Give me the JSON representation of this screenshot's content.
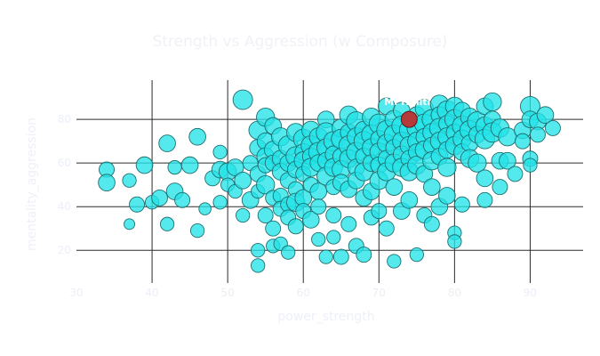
{
  "chart_data": {
    "type": "scatter",
    "title": "Strength vs Aggression (w Composure)",
    "xlabel": "power_strength",
    "ylabel": "mentality_aggression",
    "xlim": [
      30,
      97
    ],
    "ylim": [
      5,
      98
    ],
    "x_ticks": [
      30,
      40,
      50,
      60,
      70,
      80,
      90
    ],
    "y_ticks": [
      20,
      40,
      60,
      80
    ],
    "grid": true,
    "legend": "none",
    "colors": {
      "points": "#22e3e8",
      "highlight": "#b53a3a"
    },
    "highlight": {
      "label": "M. Haliti",
      "x": 74,
      "y": 80
    },
    "series": [
      {
        "points": [
          [
            34,
            57,
            72
          ],
          [
            34,
            51,
            74
          ],
          [
            37,
            52,
            70
          ],
          [
            37,
            32,
            66
          ],
          [
            38,
            41,
            72
          ],
          [
            39,
            59,
            74
          ],
          [
            40,
            42,
            70
          ],
          [
            41,
            44,
            73
          ],
          [
            42,
            69,
            74
          ],
          [
            42,
            32,
            70
          ],
          [
            43,
            58,
            70
          ],
          [
            43,
            47,
            74
          ],
          [
            44,
            43,
            72
          ],
          [
            45,
            59,
            74
          ],
          [
            46,
            72,
            74
          ],
          [
            46,
            29,
            70
          ],
          [
            47,
            39,
            68
          ],
          [
            48,
            53,
            72
          ],
          [
            49,
            57,
            74
          ],
          [
            49,
            65,
            70
          ],
          [
            49,
            42,
            70
          ],
          [
            50,
            56,
            75
          ],
          [
            50,
            50,
            70
          ],
          [
            51,
            58,
            74
          ],
          [
            51,
            47,
            70
          ],
          [
            52,
            36,
            70
          ],
          [
            52,
            52,
            74
          ],
          [
            52,
            89,
            78
          ],
          [
            53,
            43,
            74
          ],
          [
            53,
            60,
            72
          ],
          [
            54,
            75,
            76
          ],
          [
            54,
            67,
            74
          ],
          [
            54,
            55,
            73
          ],
          [
            54,
            47,
            70
          ],
          [
            54,
            13,
            70
          ],
          [
            54,
            20,
            70
          ],
          [
            55,
            81,
            76
          ],
          [
            55,
            70,
            74
          ],
          [
            55,
            63,
            75
          ],
          [
            55,
            59,
            72
          ],
          [
            55,
            50,
            76
          ],
          [
            55,
            36,
            72
          ],
          [
            56,
            77,
            74
          ],
          [
            56,
            66,
            75
          ],
          [
            56,
            60,
            73
          ],
          [
            56,
            44,
            72
          ],
          [
            56,
            30,
            72
          ],
          [
            56,
            22,
            70
          ],
          [
            57,
            72,
            76
          ],
          [
            57,
            62,
            74
          ],
          [
            57,
            56,
            74
          ],
          [
            57,
            45,
            72
          ],
          [
            57,
            39,
            72
          ],
          [
            57,
            23,
            70
          ],
          [
            58,
            68,
            78
          ],
          [
            58,
            60,
            74
          ],
          [
            58,
            52,
            73
          ],
          [
            58,
            41,
            72
          ],
          [
            58,
            35,
            72
          ],
          [
            58,
            19,
            70
          ],
          [
            59,
            74,
            76
          ],
          [
            59,
            63,
            78
          ],
          [
            59,
            57,
            74
          ],
          [
            59,
            48,
            72
          ],
          [
            59,
            42,
            76
          ],
          [
            59,
            31,
            72
          ],
          [
            60,
            71,
            78
          ],
          [
            60,
            65,
            74
          ],
          [
            60,
            61,
            76
          ],
          [
            60,
            55,
            72
          ],
          [
            60,
            44,
            74
          ],
          [
            60,
            38,
            72
          ],
          [
            61,
            75,
            76
          ],
          [
            61,
            68,
            78
          ],
          [
            61,
            63,
            74
          ],
          [
            61,
            58,
            76
          ],
          [
            61,
            50,
            72
          ],
          [
            61,
            34,
            74
          ],
          [
            62,
            72,
            76
          ],
          [
            62,
            65,
            78
          ],
          [
            62,
            60,
            74
          ],
          [
            62,
            47,
            74
          ],
          [
            62,
            40,
            72
          ],
          [
            62,
            25,
            70
          ],
          [
            63,
            80,
            74
          ],
          [
            63,
            74,
            78
          ],
          [
            63,
            67,
            76
          ],
          [
            63,
            61,
            74
          ],
          [
            63,
            54,
            76
          ],
          [
            63,
            17,
            70
          ],
          [
            64,
            70,
            78
          ],
          [
            64,
            64,
            74
          ],
          [
            64,
            58,
            76
          ],
          [
            64,
            49,
            72
          ],
          [
            64,
            36,
            72
          ],
          [
            64,
            26,
            70
          ],
          [
            65,
            76,
            76
          ],
          [
            65,
            71,
            78
          ],
          [
            65,
            63,
            74
          ],
          [
            65,
            57,
            76
          ],
          [
            65,
            51,
            74
          ],
          [
            65,
            17,
            72
          ],
          [
            66,
            82,
            76
          ],
          [
            66,
            74,
            74
          ],
          [
            66,
            68,
            78
          ],
          [
            66,
            62,
            76
          ],
          [
            66,
            48,
            74
          ],
          [
            66,
            32,
            72
          ],
          [
            67,
            79,
            78
          ],
          [
            67,
            72,
            76
          ],
          [
            67,
            65,
            78
          ],
          [
            67,
            58,
            74
          ],
          [
            67,
            52,
            74
          ],
          [
            67,
            22,
            72
          ],
          [
            68,
            75,
            76
          ],
          [
            68,
            70,
            78
          ],
          [
            68,
            63,
            74
          ],
          [
            68,
            56,
            76
          ],
          [
            68,
            44,
            74
          ],
          [
            68,
            18,
            72
          ],
          [
            69,
            81,
            76
          ],
          [
            69,
            73,
            78
          ],
          [
            69,
            67,
            76
          ],
          [
            69,
            60,
            74
          ],
          [
            69,
            47,
            74
          ],
          [
            69,
            35,
            72
          ],
          [
            70,
            78,
            78
          ],
          [
            70,
            71,
            74
          ],
          [
            70,
            65,
            76
          ],
          [
            70,
            59,
            74
          ],
          [
            70,
            52,
            76
          ],
          [
            70,
            38,
            72
          ],
          [
            71,
            86,
            74
          ],
          [
            71,
            75,
            78
          ],
          [
            71,
            69,
            76
          ],
          [
            71,
            62,
            74
          ],
          [
            71,
            56,
            76
          ],
          [
            71,
            30,
            72
          ],
          [
            72,
            80,
            76
          ],
          [
            72,
            73,
            78
          ],
          [
            72,
            67,
            74
          ],
          [
            72,
            60,
            76
          ],
          [
            72,
            49,
            74
          ],
          [
            72,
            15,
            70
          ],
          [
            73,
            84,
            74
          ],
          [
            73,
            77,
            78
          ],
          [
            73,
            70,
            76
          ],
          [
            73,
            64,
            74
          ],
          [
            73,
            58,
            76
          ],
          [
            73,
            38,
            74
          ],
          [
            74,
            75,
            78
          ],
          [
            74,
            68,
            76
          ],
          [
            74,
            62,
            74
          ],
          [
            74,
            56,
            76
          ],
          [
            74,
            43,
            74
          ],
          [
            75,
            82,
            74
          ],
          [
            75,
            76,
            78
          ],
          [
            75,
            70,
            76
          ],
          [
            75,
            65,
            74
          ],
          [
            75,
            59,
            76
          ],
          [
            75,
            18,
            70
          ],
          [
            76,
            85,
            76
          ],
          [
            76,
            78,
            78
          ],
          [
            76,
            72,
            74
          ],
          [
            76,
            66,
            76
          ],
          [
            76,
            55,
            74
          ],
          [
            76,
            36,
            72
          ],
          [
            77,
            80,
            78
          ],
          [
            77,
            74,
            76
          ],
          [
            77,
            68,
            74
          ],
          [
            77,
            61,
            76
          ],
          [
            77,
            49,
            74
          ],
          [
            77,
            32,
            72
          ],
          [
            78,
            87,
            76
          ],
          [
            78,
            82,
            74
          ],
          [
            78,
            76,
            78
          ],
          [
            78,
            70,
            76
          ],
          [
            78,
            63,
            74
          ],
          [
            78,
            40,
            74
          ],
          [
            79,
            84,
            78
          ],
          [
            79,
            78,
            74
          ],
          [
            79,
            72,
            76
          ],
          [
            79,
            66,
            74
          ],
          [
            79,
            58,
            76
          ],
          [
            79,
            45,
            74
          ],
          [
            80,
            86,
            76
          ],
          [
            80,
            80,
            78
          ],
          [
            80,
            74,
            74
          ],
          [
            80,
            68,
            76
          ],
          [
            80,
            28,
            70
          ],
          [
            80,
            24,
            70
          ],
          [
            81,
            84,
            74
          ],
          [
            81,
            77,
            78
          ],
          [
            81,
            71,
            76
          ],
          [
            81,
            65,
            74
          ],
          [
            81,
            41,
            72
          ],
          [
            82,
            81,
            76
          ],
          [
            82,
            75,
            78
          ],
          [
            82,
            69,
            74
          ],
          [
            82,
            62,
            76
          ],
          [
            83,
            79,
            78
          ],
          [
            83,
            73,
            74
          ],
          [
            83,
            60,
            76
          ],
          [
            84,
            86,
            74
          ],
          [
            84,
            77,
            76
          ],
          [
            84,
            71,
            78
          ],
          [
            84,
            53,
            74
          ],
          [
            84,
            43,
            72
          ],
          [
            85,
            88,
            76
          ],
          [
            85,
            80,
            74
          ],
          [
            85,
            74,
            78
          ],
          [
            86,
            76,
            76
          ],
          [
            86,
            61,
            74
          ],
          [
            86,
            49,
            72
          ],
          [
            87,
            72,
            76
          ],
          [
            87,
            61,
            74
          ],
          [
            88,
            55,
            72
          ],
          [
            89,
            75,
            74
          ],
          [
            89,
            70,
            72
          ],
          [
            90,
            86,
            78
          ],
          [
            90,
            80,
            74
          ],
          [
            90,
            62,
            72
          ],
          [
            90,
            59,
            70
          ],
          [
            91,
            79,
            74
          ],
          [
            91,
            73,
            72
          ],
          [
            92,
            82,
            74
          ],
          [
            93,
            76,
            72
          ]
        ]
      }
    ]
  }
}
